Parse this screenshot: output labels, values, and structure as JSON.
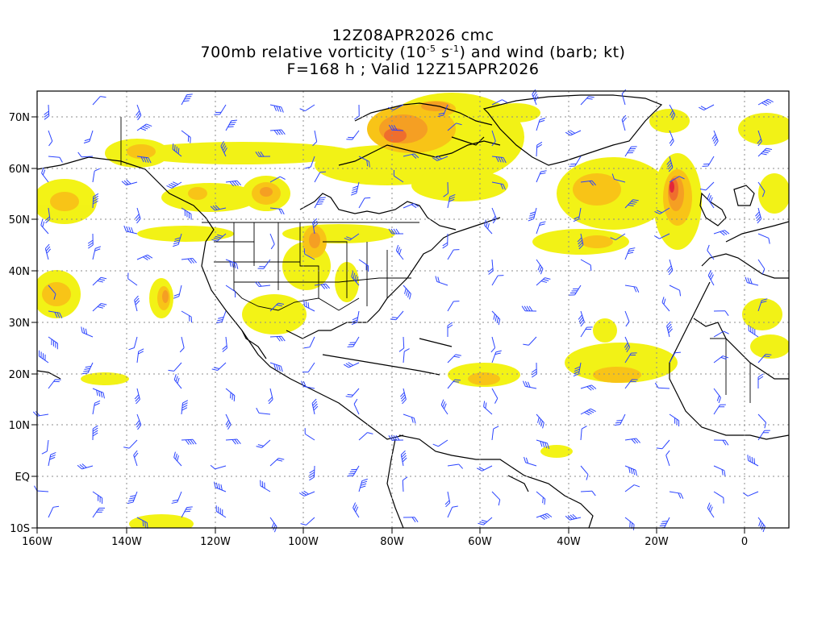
{
  "title": {
    "line1": "12Z08APR2026 cmc",
    "line2_pre": "700mb relative vorticity (10",
    "line2_exp1": "-5",
    "line2_mid": " s",
    "line2_exp2": "-1",
    "line2_post": ") and wind (barb; kt)",
    "line3": "F=168 h ; Valid 12Z15APR2026"
  },
  "axes": {
    "lon_labels": [
      "160W",
      "140W",
      "120W",
      "100W",
      "80W",
      "60W",
      "40W",
      "20W",
      "0"
    ],
    "lat_labels": [
      "70N",
      "60N",
      "50N",
      "40N",
      "30N",
      "20N",
      "10N",
      "EQ",
      "10S"
    ]
  },
  "map": {
    "projection": "cylindrical equidistant",
    "lon_range": [
      -160,
      10
    ],
    "lat_range": [
      -10,
      75
    ],
    "gridlines": "dotted",
    "shading_colors": [
      "#f2f20a",
      "#f8c417",
      "#f59f23",
      "#ef6e2d",
      "#e3263a"
    ],
    "barb_color": "#2b44ff",
    "coast_color": "#000000"
  }
}
